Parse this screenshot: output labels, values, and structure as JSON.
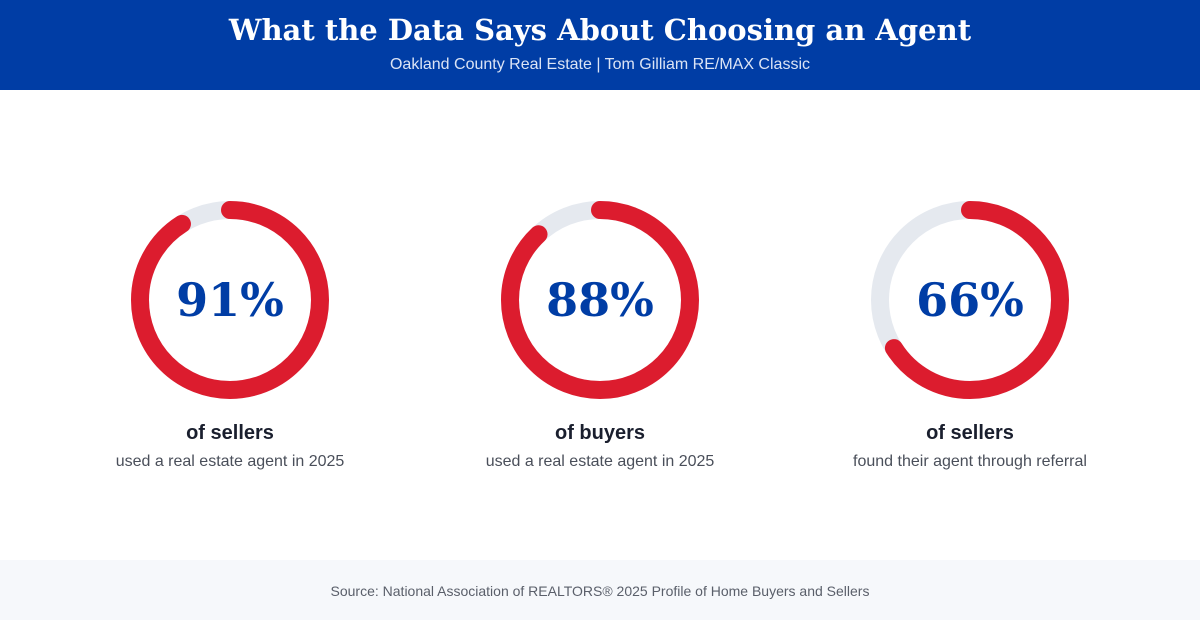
{
  "header": {
    "title": "What the Data Says About Choosing an Agent",
    "subtitle": "Oakland County Real Estate | Tom Gilliam RE/MAX Classic"
  },
  "colors": {
    "header_bg": "#003da5",
    "ring_fill": "#dc1c2e",
    "ring_track": "#e5e9ef",
    "value_text": "#003da5"
  },
  "chart_data": {
    "type": "pie",
    "series": [
      {
        "value": 91,
        "display": "91%",
        "label": "of sellers",
        "description": "used a real estate agent in 2025"
      },
      {
        "value": 88,
        "display": "88%",
        "label": "of buyers",
        "description": "used a real estate agent in 2025"
      },
      {
        "value": 66,
        "display": "66%",
        "label": "of sellers",
        "description": "found their agent through referral"
      }
    ]
  },
  "footer": {
    "source": "Source: National Association of REALTORS® 2025 Profile of Home Buyers and Sellers"
  }
}
